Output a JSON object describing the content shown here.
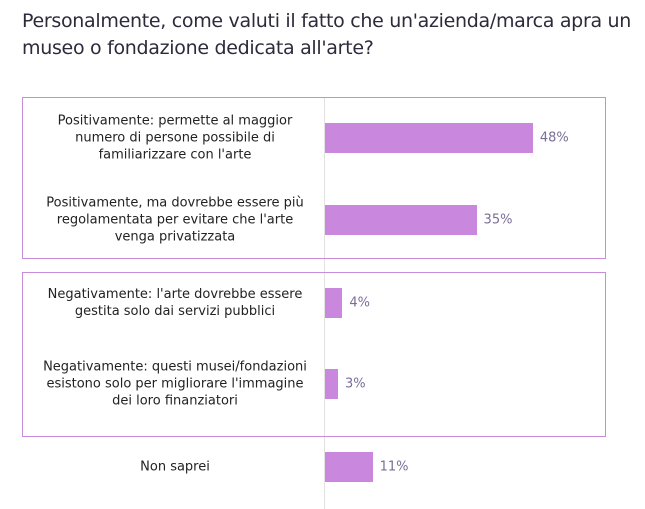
{
  "chart_data": {
    "type": "bar",
    "orientation": "horizontal",
    "title": "Personalmente, come valuti il fatto che un'azienda/marca apra un museo o fondazione dedicata all'arte?",
    "categories": [
      "Positivamente: permette al maggior numero di persone possibile di familiarizzare con l'arte",
      "Positivamente, ma dovrebbe essere più regolamentata per evitare che l'arte venga privatizzata",
      "Negativamente: l'arte dovrebbe essere gestita solo dai servizi pubblici",
      "Negativamente: questi musei/fondazioni esistono solo per migliorare l'immagine dei loro finanziatori",
      "Non saprei"
    ],
    "values": [
      48,
      35,
      4,
      3,
      11
    ],
    "value_labels": [
      "48%",
      "35%",
      "4%",
      "3%",
      "11%"
    ],
    "groups": [
      [
        0,
        1
      ],
      [
        2,
        3
      ]
    ],
    "unit": "%",
    "xlim": [
      0,
      65
    ],
    "grid": false,
    "colors": {
      "bar": "#c987dd",
      "group_border": "#c98bdc",
      "value_text": "#7a6e98"
    }
  }
}
